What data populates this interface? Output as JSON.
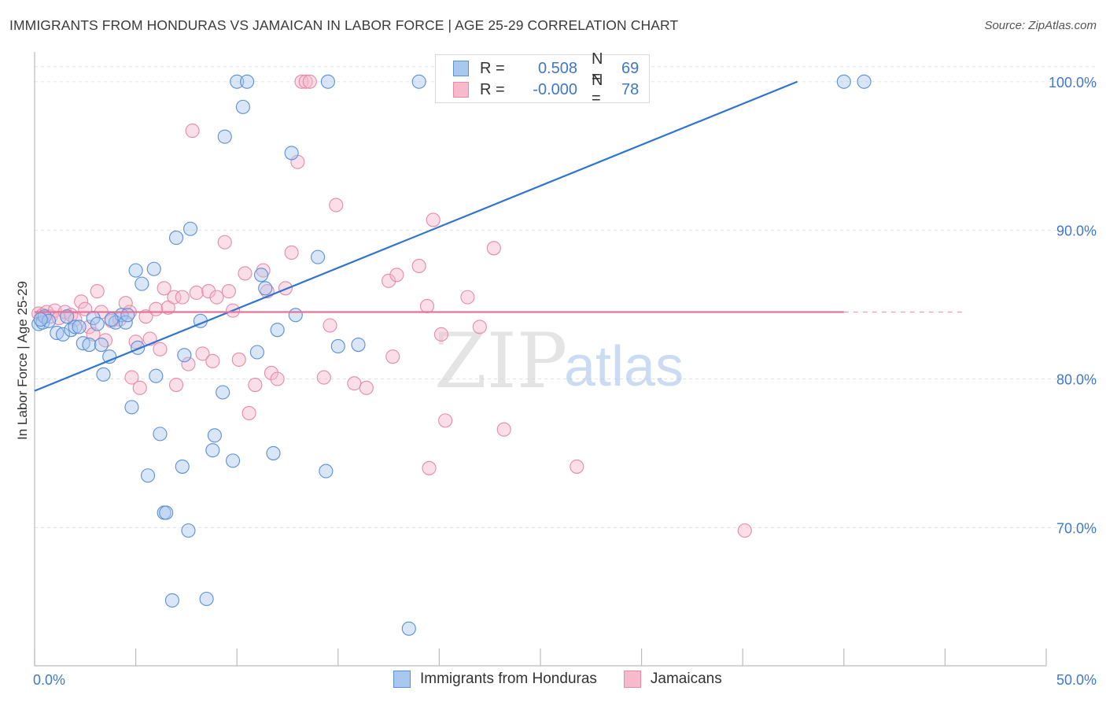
{
  "title": "IMMIGRANTS FROM HONDURAS VS JAMAICAN IN LABOR FORCE | AGE 25-29 CORRELATION CHART",
  "source": "Source: ZipAtlas.com",
  "watermark": {
    "zip": "ZIP",
    "atlas": "atlas"
  },
  "legend": {
    "r_label": "R =",
    "n_label": "N =",
    "rows": [
      {
        "r": "0.508",
        "n": "69",
        "color": "#a9c8f0",
        "stroke": "#5b8fd6"
      },
      {
        "r": "-0.000",
        "n": "78",
        "color": "#f7b9cc",
        "stroke": "#e68aa8"
      }
    ]
  },
  "bottom_legend": [
    "Immigrants from Honduras",
    "Jamaicans"
  ],
  "chart_data": {
    "type": "scatter",
    "title": "IMMIGRANTS FROM HONDURAS VS JAMAICAN IN LABOR FORCE | AGE 25-29 CORRELATION CHART",
    "xlabel": "",
    "ylabel": "In Labor Force | Age 25-29",
    "xlim": [
      0,
      50
    ],
    "ylim": [
      60.7,
      102.0
    ],
    "x_tick_labels": [
      "0.0%",
      "50.0%"
    ],
    "y_ticks": [
      70,
      80,
      90,
      100
    ],
    "y_tick_labels": [
      "70.0%",
      "80.0%",
      "90.0%",
      "100.0%"
    ],
    "grid": true,
    "colors": {
      "honduras": "#5b8fd6",
      "jamaicans": "#e68aa8",
      "honduras_line": "#2f74d0",
      "jamaicans_line": "#e5749a"
    },
    "series": [
      {
        "name": "Immigrants from Honduras",
        "trend": {
          "x0": 0,
          "y0": 79.2,
          "x1": 37.7,
          "y1": 100.0
        },
        "points": [
          [
            0.2,
            83.7
          ],
          [
            0.4,
            83.8
          ],
          [
            0.5,
            84.2
          ],
          [
            0.7,
            83.9
          ],
          [
            1.1,
            83.1
          ],
          [
            1.4,
            83.0
          ],
          [
            1.8,
            83.3
          ],
          [
            2.0,
            83.5
          ],
          [
            2.2,
            83.5
          ],
          [
            2.4,
            82.4
          ],
          [
            2.7,
            82.3
          ],
          [
            2.9,
            84.1
          ],
          [
            3.1,
            83.7
          ],
          [
            3.3,
            82.3
          ],
          [
            3.4,
            80.3
          ],
          [
            3.7,
            81.5
          ],
          [
            4.0,
            83.8
          ],
          [
            4.3,
            84.3
          ],
          [
            4.5,
            83.8
          ],
          [
            4.6,
            84.3
          ],
          [
            4.8,
            78.1
          ],
          [
            5.0,
            87.3
          ],
          [
            5.1,
            82.1
          ],
          [
            5.3,
            86.4
          ],
          [
            5.6,
            73.5
          ],
          [
            5.9,
            87.4
          ],
          [
            6.0,
            80.2
          ],
          [
            6.2,
            76.3
          ],
          [
            6.4,
            71.0
          ],
          [
            6.5,
            71.0
          ],
          [
            6.8,
            65.1
          ],
          [
            7.0,
            89.5
          ],
          [
            7.3,
            74.1
          ],
          [
            7.4,
            81.6
          ],
          [
            7.6,
            69.8
          ],
          [
            7.7,
            90.1
          ],
          [
            8.2,
            83.9
          ],
          [
            8.5,
            65.2
          ],
          [
            8.8,
            75.2
          ],
          [
            8.9,
            76.2
          ],
          [
            9.3,
            79.1
          ],
          [
            9.4,
            96.3
          ],
          [
            9.8,
            74.5
          ],
          [
            10.0,
            100.0
          ],
          [
            10.3,
            98.3
          ],
          [
            10.5,
            100.0
          ],
          [
            11.0,
            81.8
          ],
          [
            11.2,
            87.0
          ],
          [
            11.4,
            86.1
          ],
          [
            11.8,
            75.0
          ],
          [
            12.0,
            83.3
          ],
          [
            12.7,
            95.2
          ],
          [
            12.9,
            84.3
          ],
          [
            14.0,
            88.2
          ],
          [
            14.4,
            73.8
          ],
          [
            14.5,
            100.0
          ],
          [
            15.0,
            82.2
          ],
          [
            16.0,
            82.3
          ],
          [
            18.5,
            63.2
          ],
          [
            19.0,
            100.0
          ],
          [
            23.5,
            100.0
          ],
          [
            24.0,
            100.0
          ],
          [
            25.2,
            100.0
          ],
          [
            28.5,
            100.0
          ],
          [
            40.0,
            100.0
          ],
          [
            41.0,
            100.0
          ],
          [
            0.3,
            84.0
          ],
          [
            1.6,
            84.2
          ],
          [
            3.8,
            84.0
          ]
        ]
      },
      {
        "name": "Jamaicans",
        "trend": {
          "x0": 0,
          "y0": 84.5,
          "x1": 40.0,
          "y1": 84.5,
          "dashed_to": 46.0
        },
        "points": [
          [
            0.2,
            84.4
          ],
          [
            0.4,
            84.3
          ],
          [
            0.6,
            84.5
          ],
          [
            0.8,
            84.2
          ],
          [
            1.0,
            84.6
          ],
          [
            1.2,
            84.1
          ],
          [
            1.5,
            84.5
          ],
          [
            1.8,
            84.3
          ],
          [
            2.0,
            84.0
          ],
          [
            2.3,
            85.2
          ],
          [
            2.5,
            84.7
          ],
          [
            2.7,
            83.5
          ],
          [
            2.9,
            83.0
          ],
          [
            3.1,
            85.9
          ],
          [
            3.3,
            84.5
          ],
          [
            3.5,
            82.6
          ],
          [
            3.8,
            83.9
          ],
          [
            4.2,
            84.0
          ],
          [
            4.5,
            85.1
          ],
          [
            4.7,
            84.5
          ],
          [
            4.8,
            80.1
          ],
          [
            5.0,
            82.5
          ],
          [
            5.2,
            79.4
          ],
          [
            5.5,
            84.2
          ],
          [
            5.7,
            82.7
          ],
          [
            6.0,
            84.7
          ],
          [
            6.2,
            82.0
          ],
          [
            6.4,
            86.1
          ],
          [
            6.6,
            84.8
          ],
          [
            6.9,
            85.5
          ],
          [
            7.0,
            79.6
          ],
          [
            7.3,
            85.5
          ],
          [
            7.6,
            81.0
          ],
          [
            7.8,
            96.7
          ],
          [
            8.0,
            85.8
          ],
          [
            8.3,
            81.7
          ],
          [
            8.6,
            85.9
          ],
          [
            8.8,
            81.2
          ],
          [
            9.0,
            85.5
          ],
          [
            9.4,
            89.2
          ],
          [
            9.6,
            85.9
          ],
          [
            9.8,
            84.6
          ],
          [
            10.1,
            81.3
          ],
          [
            10.4,
            87.1
          ],
          [
            10.6,
            77.7
          ],
          [
            10.9,
            79.6
          ],
          [
            11.3,
            87.3
          ],
          [
            11.5,
            85.9
          ],
          [
            11.7,
            80.4
          ],
          [
            12.0,
            80.0
          ],
          [
            12.4,
            86.1
          ],
          [
            12.7,
            88.5
          ],
          [
            13.0,
            94.6
          ],
          [
            13.2,
            100.0
          ],
          [
            13.4,
            100.0
          ],
          [
            13.6,
            100.0
          ],
          [
            14.3,
            80.1
          ],
          [
            14.6,
            83.6
          ],
          [
            14.9,
            91.7
          ],
          [
            15.8,
            79.7
          ],
          [
            16.4,
            79.4
          ],
          [
            17.5,
            86.6
          ],
          [
            17.9,
            87.0
          ],
          [
            17.7,
            81.5
          ],
          [
            19.0,
            87.6
          ],
          [
            19.4,
            84.9
          ],
          [
            19.7,
            90.7
          ],
          [
            20.1,
            83.0
          ],
          [
            20.3,
            77.2
          ],
          [
            21.4,
            85.5
          ],
          [
            22.0,
            83.5
          ],
          [
            22.7,
            88.8
          ],
          [
            23.2,
            76.6
          ],
          [
            24.0,
            100.0
          ],
          [
            26.8,
            74.1
          ],
          [
            27.3,
            100.0
          ],
          [
            35.1,
            69.8
          ],
          [
            19.5,
            74.0
          ]
        ]
      }
    ]
  }
}
